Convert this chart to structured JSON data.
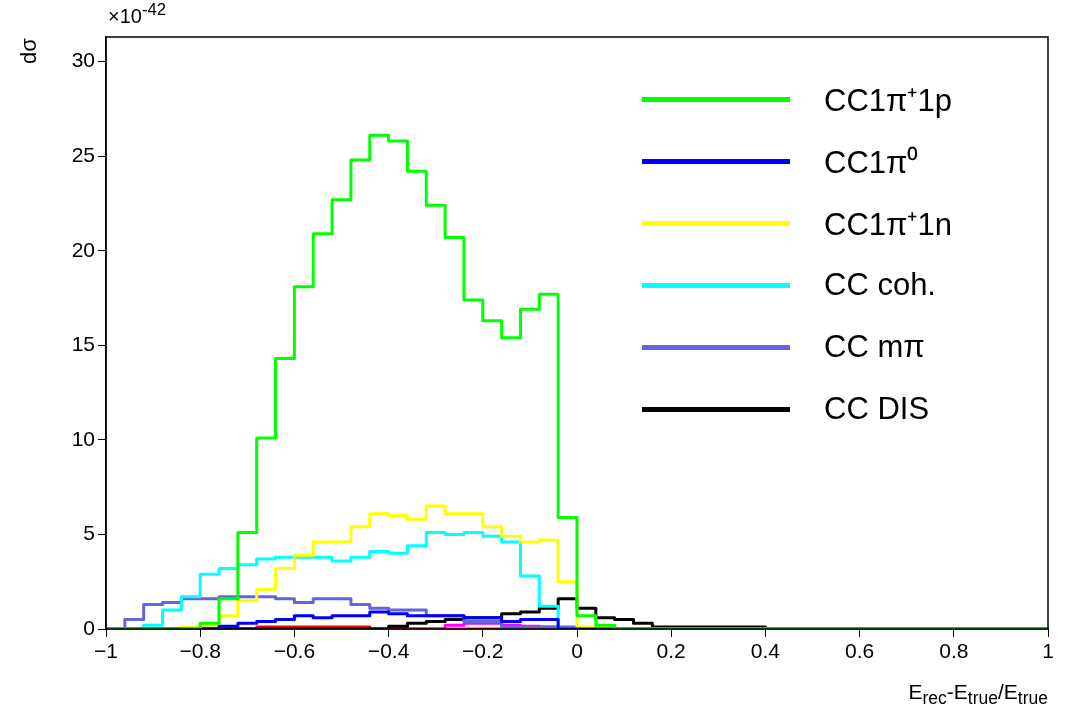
{
  "chart_data": {
    "type": "histogram",
    "xlabel": "E$_{rec}$-E$_{true}$/E$_{true}$",
    "ylabel": "dσ",
    "annotations": [
      "×10$^{-42}$"
    ],
    "bins": [
      -1,
      -0.96,
      -0.92,
      -0.88,
      -0.84,
      -0.8,
      -0.76,
      -0.72,
      -0.68,
      -0.64,
      -0.6,
      -0.56,
      -0.52,
      -0.48,
      -0.44,
      -0.4,
      -0.36,
      -0.32,
      -0.28,
      -0.24,
      -0.2,
      -0.16,
      -0.12,
      -0.08,
      -0.04,
      0,
      0.04,
      0.08,
      0.12,
      0.16,
      0.2,
      0.24,
      0.28,
      0.32,
      0.36,
      0.4,
      0.44,
      0.48,
      0.52,
      0.56,
      0.6,
      0.64,
      0.68,
      0.72,
      0.76,
      0.8,
      0.84,
      0.88,
      0.92,
      0.96,
      1
    ],
    "series": [
      {
        "name": "CC1π⁺1p",
        "color": "#00ff00",
        "values": [
          0,
          0,
          0,
          0,
          0,
          0.3,
          1.6,
          5.1,
          10.1,
          14.3,
          18.1,
          20.9,
          22.7,
          24.8,
          26.1,
          25.8,
          24.2,
          22.4,
          20.7,
          17.4,
          16.3,
          15.4,
          16.9,
          17.7,
          5.9,
          0.7,
          0.2,
          0,
          0,
          0,
          0,
          0,
          0,
          0,
          0,
          0,
          0,
          0,
          0,
          0,
          0,
          0,
          0,
          0,
          0,
          0,
          0,
          0,
          0,
          0
        ]
      },
      {
        "name": "CC1π⁰",
        "color": "#0000ff",
        "values": [
          0,
          0,
          0,
          0,
          0,
          0,
          0.15,
          0.3,
          0.4,
          0.5,
          0.7,
          0.6,
          0.7,
          0.7,
          0.9,
          0.8,
          0.7,
          0.7,
          0.7,
          0.6,
          0.6,
          0.4,
          0.5,
          0.5,
          0,
          0,
          0,
          0,
          0,
          0,
          0,
          0,
          0,
          0,
          0,
          0,
          0,
          0,
          0,
          0,
          0,
          0,
          0,
          0,
          0,
          0,
          0,
          0,
          0,
          0
        ]
      },
      {
        "name": "CC1π⁺1n",
        "color": "#ffff00",
        "values": [
          0,
          0,
          0,
          0,
          0.1,
          0.2,
          0.7,
          1.5,
          2.1,
          3.2,
          3.9,
          4.6,
          4.6,
          5.4,
          6.1,
          6.0,
          5.8,
          6.5,
          6.1,
          6.1,
          5.4,
          4.9,
          4.6,
          4.7,
          2.5,
          0.1,
          0.1,
          0,
          0,
          0,
          0,
          0,
          0,
          0,
          0,
          0,
          0,
          0,
          0,
          0,
          0,
          0,
          0,
          0,
          0,
          0,
          0,
          0,
          0,
          0
        ]
      },
      {
        "name": "CC coh.",
        "color": "#00ffff",
        "values": [
          0,
          0,
          0.2,
          1.0,
          1.7,
          2.9,
          3.2,
          3.4,
          3.7,
          3.8,
          3.8,
          3.8,
          3.6,
          3.8,
          4.1,
          4.0,
          4.4,
          5.1,
          5.0,
          5.1,
          4.9,
          4.6,
          2.8,
          1.2,
          0,
          0,
          0,
          0,
          0,
          0,
          0,
          0,
          0,
          0,
          0,
          0,
          0,
          0,
          0,
          0,
          0,
          0,
          0,
          0,
          0,
          0,
          0,
          0,
          0,
          0
        ]
      },
      {
        "name": "CC mπ",
        "color": "#6464dc",
        "values": [
          0,
          0.5,
          1.3,
          1.4,
          1.6,
          1.6,
          1.7,
          1.7,
          1.7,
          1.6,
          1.4,
          1.6,
          1.6,
          1.3,
          1.1,
          1.0,
          1.0,
          0.7,
          0.7,
          0.4,
          0.4,
          0.1,
          0.1,
          0.1,
          0.1,
          0,
          0,
          0,
          0,
          0,
          0,
          0,
          0,
          0,
          0,
          0,
          0,
          0,
          0,
          0,
          0,
          0,
          0,
          0,
          0,
          0,
          0,
          0,
          0,
          0
        ]
      },
      {
        "name": "CC DIS",
        "color": "#000000",
        "values": [
          0,
          0,
          0,
          0,
          0,
          0,
          0,
          0,
          0,
          0,
          0,
          0,
          0,
          0,
          0,
          0.15,
          0.3,
          0.4,
          0.5,
          0.6,
          0.6,
          0.8,
          0.9,
          1.1,
          1.6,
          1.1,
          0.6,
          0.5,
          0.3,
          0.1,
          0.1,
          0.1,
          0.1,
          0.1,
          0.1,
          0,
          0,
          0,
          0,
          0,
          0,
          0,
          0,
          0,
          0,
          0,
          0,
          0,
          0,
          0
        ]
      },
      {
        "color": "#ff0000",
        "values": [
          0,
          0,
          0,
          0,
          0,
          0,
          0,
          0,
          0.1,
          0.1,
          0.1,
          0.1,
          0.1,
          0.1,
          0,
          0,
          0,
          0,
          0,
          0,
          0,
          0,
          0,
          0,
          0,
          0,
          0,
          0,
          0,
          0,
          0,
          0,
          0,
          0,
          0,
          0,
          0,
          0,
          0,
          0,
          0,
          0,
          0,
          0,
          0,
          0,
          0,
          0,
          0,
          0
        ]
      },
      {
        "color": "#ff00ff",
        "values": [
          0,
          0,
          0,
          0,
          0,
          0,
          0,
          0,
          0,
          0,
          0,
          0,
          0,
          0,
          0,
          0.1,
          0,
          0,
          0.2,
          0.3,
          0.3,
          0.2,
          0.15,
          0.1,
          0,
          0,
          0,
          0,
          0,
          0,
          0,
          0,
          0,
          0,
          0,
          0,
          0,
          0,
          0,
          0,
          0,
          0,
          0,
          0,
          0,
          0,
          0,
          0,
          0,
          0
        ]
      }
    ],
    "xlim": [
      -1,
      1
    ],
    "xticks": [
      {
        "value": -1,
        "label": "−1"
      },
      {
        "value": -0.8,
        "label": "−0.8"
      },
      {
        "value": -0.6,
        "label": "−0.6"
      },
      {
        "value": -0.4,
        "label": "−0.4"
      },
      {
        "value": -0.2,
        "label": "−0.2"
      },
      0,
      0.2,
      0.4,
      0.6,
      0.8,
      1
    ],
    "ylim": [
      0,
      31.3
    ],
    "yticks": [
      0,
      5,
      10,
      15,
      20,
      25,
      30
    ],
    "legend": "top right"
  }
}
